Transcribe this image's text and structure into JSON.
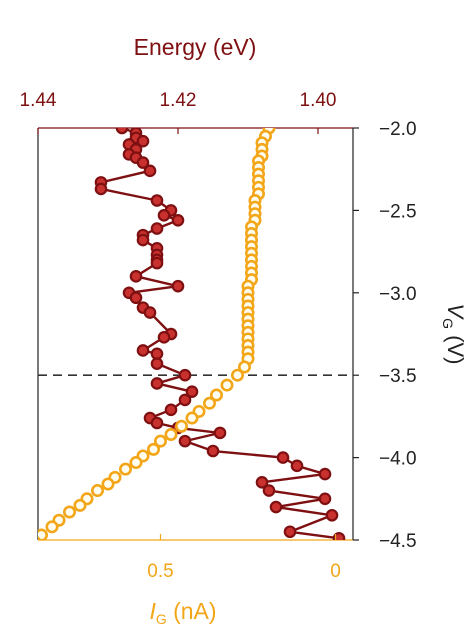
{
  "colors": {
    "energy": "#7e1012",
    "energy_fill": "#c8312e",
    "current": "#f2a618",
    "current_fill": "#fffdf0",
    "axis": "#222222",
    "dashed": "#333333"
  },
  "chart_data": {
    "type": "scatter",
    "title": "",
    "top_axis": {
      "label": "Energy (eV)",
      "range": [
        1.44,
        1.395
      ],
      "ticks": [
        "1.44",
        "1.42",
        "1.40"
      ]
    },
    "bottom_axis": {
      "label_main": "I",
      "label_sub": "G",
      "label_unit": " (nA)",
      "range": [
        0.85,
        -0.05
      ],
      "ticks": [
        "0.5",
        "0"
      ]
    },
    "right_axis": {
      "label_main": "V",
      "label_sub": "G",
      "label_unit": " (V)",
      "range": [
        -2.0,
        -4.5
      ],
      "ticks": [
        "−2.0",
        "−2.5",
        "−3.0",
        "−3.5",
        "−4.0",
        "−4.5"
      ]
    },
    "reference_line": {
      "vg": -3.5,
      "style": "dashed"
    },
    "series": [
      {
        "axis": "energy",
        "points": [
          [
            1.428,
            -2.0
          ],
          [
            1.426,
            -2.03
          ],
          [
            1.426,
            -2.06
          ],
          [
            1.425,
            -2.08
          ],
          [
            1.427,
            -2.1
          ],
          [
            1.426,
            -2.13
          ],
          [
            1.427,
            -2.16
          ],
          [
            1.426,
            -2.18
          ],
          [
            1.425,
            -2.21
          ],
          [
            1.424,
            -2.26
          ],
          [
            1.431,
            -2.33
          ],
          [
            1.431,
            -2.37
          ],
          [
            1.423,
            -2.44
          ],
          [
            1.421,
            -2.5
          ],
          [
            1.422,
            -2.53
          ],
          [
            1.42,
            -2.56
          ],
          [
            1.423,
            -2.61
          ],
          [
            1.425,
            -2.65
          ],
          [
            1.425,
            -2.68
          ],
          [
            1.423,
            -2.73
          ],
          [
            1.423,
            -2.77
          ],
          [
            1.423,
            -2.8
          ],
          [
            1.423,
            -2.82
          ],
          [
            1.426,
            -2.9
          ],
          [
            1.42,
            -2.96
          ],
          [
            1.427,
            -3.0
          ],
          [
            1.426,
            -3.03
          ],
          [
            1.425,
            -3.09
          ],
          [
            1.424,
            -3.12
          ],
          [
            1.421,
            -3.25
          ],
          [
            1.422,
            -3.27
          ],
          [
            1.425,
            -3.35
          ],
          [
            1.423,
            -3.37
          ],
          [
            1.423,
            -3.43
          ],
          [
            1.419,
            -3.5
          ],
          [
            1.423,
            -3.55
          ],
          [
            1.418,
            -3.6
          ],
          [
            1.419,
            -3.65
          ],
          [
            1.421,
            -3.71
          ],
          [
            1.424,
            -3.76
          ],
          [
            1.423,
            -3.79
          ],
          [
            1.42,
            -3.82
          ],
          [
            1.414,
            -3.85
          ],
          [
            1.419,
            -3.9
          ],
          [
            1.415,
            -3.96
          ],
          [
            1.405,
            -4.0
          ],
          [
            1.403,
            -4.05
          ],
          [
            1.399,
            -4.1
          ],
          [
            1.408,
            -4.15
          ],
          [
            1.407,
            -4.2
          ],
          [
            1.399,
            -4.25
          ],
          [
            1.406,
            -4.3
          ],
          [
            1.398,
            -4.35
          ],
          [
            1.404,
            -4.45
          ],
          [
            1.397,
            -4.49
          ]
        ]
      },
      {
        "axis": "current",
        "points": [
          [
            0.19,
            -2.0
          ],
          [
            0.2,
            -2.05
          ],
          [
            0.21,
            -2.09
          ],
          [
            0.21,
            -2.13
          ],
          [
            0.21,
            -2.17
          ],
          [
            0.22,
            -2.2
          ],
          [
            0.22,
            -2.24
          ],
          [
            0.22,
            -2.28
          ],
          [
            0.22,
            -2.32
          ],
          [
            0.22,
            -2.36
          ],
          [
            0.22,
            -2.4
          ],
          [
            0.23,
            -2.44
          ],
          [
            0.23,
            -2.48
          ],
          [
            0.23,
            -2.52
          ],
          [
            0.23,
            -2.56
          ],
          [
            0.24,
            -2.6
          ],
          [
            0.24,
            -2.64
          ],
          [
            0.24,
            -2.68
          ],
          [
            0.24,
            -2.72
          ],
          [
            0.24,
            -2.76
          ],
          [
            0.24,
            -2.8
          ],
          [
            0.24,
            -2.84
          ],
          [
            0.24,
            -2.88
          ],
          [
            0.24,
            -2.92
          ],
          [
            0.25,
            -2.96
          ],
          [
            0.25,
            -3.0
          ],
          [
            0.25,
            -3.04
          ],
          [
            0.25,
            -3.08
          ],
          [
            0.25,
            -3.12
          ],
          [
            0.25,
            -3.16
          ],
          [
            0.25,
            -3.2
          ],
          [
            0.25,
            -3.24
          ],
          [
            0.25,
            -3.28
          ],
          [
            0.25,
            -3.32
          ],
          [
            0.25,
            -3.36
          ],
          [
            0.25,
            -3.4
          ],
          [
            0.26,
            -3.45
          ],
          [
            0.28,
            -3.5
          ],
          [
            0.31,
            -3.56
          ],
          [
            0.34,
            -3.62
          ],
          [
            0.36,
            -3.67
          ],
          [
            0.39,
            -3.72
          ],
          [
            0.41,
            -3.76
          ],
          [
            0.44,
            -3.81
          ],
          [
            0.47,
            -3.86
          ],
          [
            0.5,
            -3.9
          ],
          [
            0.52,
            -3.95
          ],
          [
            0.55,
            -3.99
          ],
          [
            0.57,
            -4.03
          ],
          [
            0.6,
            -4.07
          ],
          [
            0.63,
            -4.12
          ],
          [
            0.65,
            -4.16
          ],
          [
            0.68,
            -4.2
          ],
          [
            0.71,
            -4.25
          ],
          [
            0.73,
            -4.29
          ],
          [
            0.76,
            -4.33
          ],
          [
            0.79,
            -4.38
          ],
          [
            0.81,
            -4.42
          ],
          [
            0.84,
            -4.47
          ],
          [
            0.86,
            -4.51
          ]
        ]
      }
    ]
  }
}
